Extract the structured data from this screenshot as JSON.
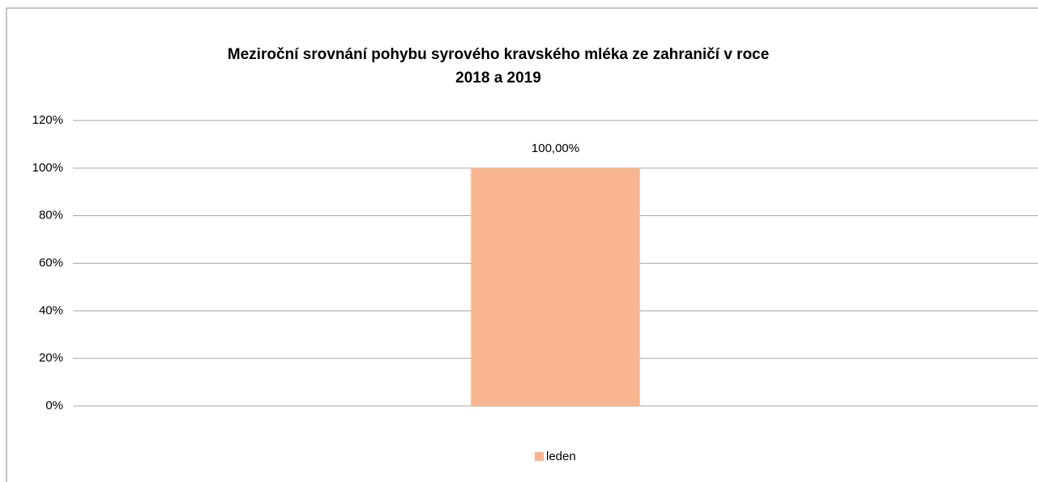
{
  "chart_data": {
    "type": "bar",
    "title": "Meziroční srovnání pohybu syrového kravského mléka ze zahraničí v roce",
    "subtitle": "2018 a 2019",
    "categories": [
      null
    ],
    "series": [
      {
        "name": "leden",
        "color": "#f8b58f",
        "values": [
          100
        ],
        "value_labels": [
          "100,00%"
        ]
      }
    ],
    "ylim": [
      0,
      120
    ],
    "yticks": [
      {
        "value": 0,
        "label": "0%"
      },
      {
        "value": 20,
        "label": "20%"
      },
      {
        "value": 40,
        "label": "40%"
      },
      {
        "value": 60,
        "label": "60%"
      },
      {
        "value": 80,
        "label": "80%"
      },
      {
        "value": 100,
        "label": "100%"
      },
      {
        "value": 120,
        "label": "120%"
      }
    ],
    "grid": true,
    "legend": "bottom"
  }
}
